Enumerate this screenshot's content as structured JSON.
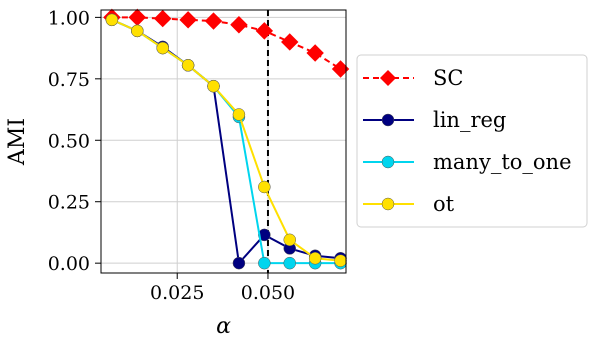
{
  "chart_data": {
    "type": "line",
    "xlabel": "α",
    "ylabel": "AMI",
    "xlim": [
      0.004,
      0.0715
    ],
    "ylim": [
      -0.04,
      1.03
    ],
    "xticks": [
      0.025,
      0.05
    ],
    "xtick_labels": [
      "0.025",
      "0.050"
    ],
    "yticks": [
      0.0,
      0.25,
      0.5,
      0.75,
      1.0
    ],
    "ytick_labels": [
      "0.00",
      "0.25",
      "0.50",
      "0.75",
      "1.00"
    ],
    "grid": true,
    "reference_line": {
      "x": 0.05,
      "style": "dashed",
      "color": "#000000"
    },
    "legend_position": "right, outside plot",
    "series": [
      {
        "name": "SC",
        "color": "#ff0000",
        "line_style": "dashed",
        "marker": "diamond",
        "x": [
          0.007,
          0.014,
          0.021,
          0.028,
          0.035,
          0.042,
          0.049,
          0.056,
          0.063,
          0.07
        ],
        "y": [
          1.0,
          1.0,
          0.995,
          0.99,
          0.985,
          0.97,
          0.945,
          0.9,
          0.855,
          0.79
        ]
      },
      {
        "name": "lin_reg",
        "color": "#000080",
        "line_style": "solid",
        "marker": "circle",
        "x": [
          0.007,
          0.014,
          0.021,
          0.028,
          0.035,
          0.042,
          0.049,
          0.056,
          0.063,
          0.07
        ],
        "y": [
          0.99,
          0.945,
          0.88,
          0.805,
          0.72,
          0.0,
          0.115,
          0.06,
          0.03,
          0.02
        ]
      },
      {
        "name": "many_to_one",
        "color": "#00d5ee",
        "line_style": "solid",
        "marker": "circle",
        "x": [
          0.007,
          0.014,
          0.021,
          0.028,
          0.035,
          0.042,
          0.049,
          0.056,
          0.063,
          0.07
        ],
        "y": [
          0.99,
          0.945,
          0.875,
          0.805,
          0.72,
          0.595,
          0.0,
          0.0,
          0.0,
          0.0
        ]
      },
      {
        "name": "ot",
        "color": "#ffe000",
        "line_style": "solid",
        "marker": "circle",
        "x": [
          0.007,
          0.014,
          0.021,
          0.028,
          0.035,
          0.042,
          0.049,
          0.056,
          0.063,
          0.07
        ],
        "y": [
          0.99,
          0.945,
          0.875,
          0.805,
          0.72,
          0.605,
          0.31,
          0.095,
          0.02,
          0.01
        ]
      }
    ]
  }
}
